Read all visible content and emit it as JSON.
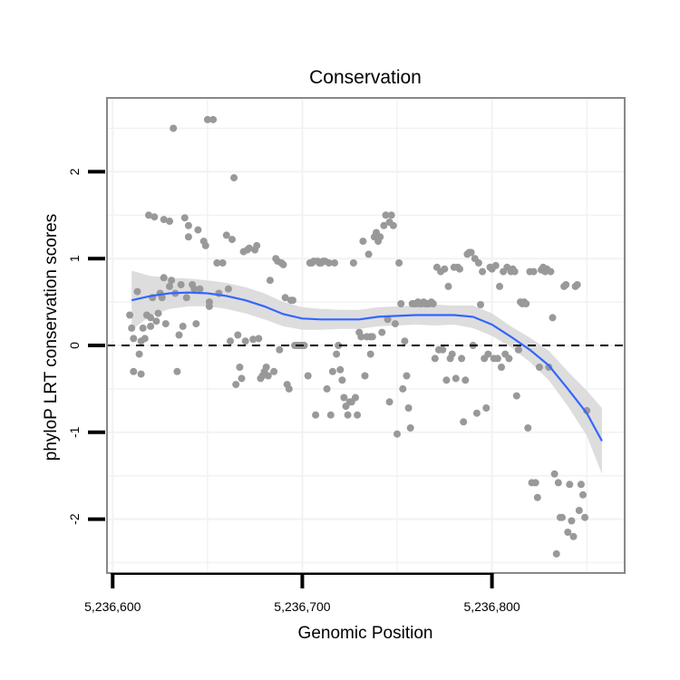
{
  "chart_data": {
    "type": "scatter",
    "title": "Conservation",
    "xlabel": "Genomic Position",
    "ylabel": "phyloP LRT conservation scores",
    "xlim": [
      5236597,
      5236870
    ],
    "ylim": [
      -2.62,
      2.85
    ],
    "x_ticks": [
      5236600,
      5236700,
      5236800
    ],
    "x_tick_labels": [
      "5,236,600",
      "5,236,700",
      "5,236,800"
    ],
    "y_ticks": [
      -2,
      -1,
      0,
      1,
      2
    ],
    "y_tick_labels": [
      "-2",
      "-1",
      "0",
      "1",
      "2"
    ],
    "reference_line": {
      "y": 0,
      "style": "dashed"
    },
    "grid": true,
    "colors": {
      "points": "#999999",
      "smooth": "#3366ff",
      "band": "#d9d9d9",
      "panel_border": "#888888",
      "grid": "#f2f2f2"
    },
    "smooth_curve": {
      "x": [
        5236610,
        5236620,
        5236630,
        5236640,
        5236650,
        5236660,
        5236670,
        5236680,
        5236690,
        5236700,
        5236710,
        5236720,
        5236730,
        5236740,
        5236750,
        5236760,
        5236770,
        5236780,
        5236790,
        5236800,
        5236810,
        5236820,
        5236830,
        5236840,
        5236850,
        5236858
      ],
      "y": [
        0.52,
        0.57,
        0.6,
        0.61,
        0.6,
        0.57,
        0.52,
        0.45,
        0.36,
        0.31,
        0.3,
        0.3,
        0.3,
        0.33,
        0.34,
        0.35,
        0.35,
        0.35,
        0.33,
        0.24,
        0.1,
        -0.05,
        -0.23,
        -0.5,
        -0.78,
        -1.1
      ],
      "upper": [
        0.86,
        0.8,
        0.78,
        0.77,
        0.75,
        0.72,
        0.67,
        0.6,
        0.5,
        0.44,
        0.42,
        0.41,
        0.41,
        0.44,
        0.45,
        0.46,
        0.47,
        0.46,
        0.46,
        0.37,
        0.22,
        0.09,
        -0.06,
        -0.3,
        -0.52,
        -0.72
      ],
      "lower": [
        0.18,
        0.34,
        0.42,
        0.45,
        0.45,
        0.42,
        0.37,
        0.3,
        0.22,
        0.18,
        0.18,
        0.19,
        0.19,
        0.22,
        0.23,
        0.24,
        0.23,
        0.24,
        0.2,
        0.11,
        -0.02,
        -0.19,
        -0.4,
        -0.7,
        -1.04,
        -1.48
      ]
    },
    "points": [
      {
        "x": 5236609,
        "y": 0.35
      },
      {
        "x": 5236610,
        "y": 0.2
      },
      {
        "x": 5236611,
        "y": 0.08
      },
      {
        "x": 5236611,
        "y": -0.3
      },
      {
        "x": 5236613,
        "y": 0.62
      },
      {
        "x": 5236614,
        "y": -0.1
      },
      {
        "x": 5236615,
        "y": 0.05
      },
      {
        "x": 5236615,
        "y": -0.33
      },
      {
        "x": 5236616,
        "y": 0.2
      },
      {
        "x": 5236617,
        "y": 0.08
      },
      {
        "x": 5236618,
        "y": 0.35
      },
      {
        "x": 5236619,
        "y": 1.5
      },
      {
        "x": 5236620,
        "y": 0.32
      },
      {
        "x": 5236620,
        "y": 0.22
      },
      {
        "x": 5236621,
        "y": 0.55
      },
      {
        "x": 5236622,
        "y": 1.48
      },
      {
        "x": 5236623,
        "y": 0.28
      },
      {
        "x": 5236624,
        "y": 0.37
      },
      {
        "x": 5236625,
        "y": 0.6
      },
      {
        "x": 5236626,
        "y": 0.55
      },
      {
        "x": 5236627,
        "y": 1.45
      },
      {
        "x": 5236627,
        "y": 0.78
      },
      {
        "x": 5236628,
        "y": 0.25
      },
      {
        "x": 5236630,
        "y": 1.43
      },
      {
        "x": 5236630,
        "y": 0.68
      },
      {
        "x": 5236631,
        "y": 0.75
      },
      {
        "x": 5236632,
        "y": 2.5
      },
      {
        "x": 5236633,
        "y": 0.6
      },
      {
        "x": 5236634,
        "y": -0.3
      },
      {
        "x": 5236635,
        "y": 0.12
      },
      {
        "x": 5236636,
        "y": 0.7
      },
      {
        "x": 5236637,
        "y": 0.22
      },
      {
        "x": 5236638,
        "y": 1.47
      },
      {
        "x": 5236639,
        "y": 0.55
      },
      {
        "x": 5236640,
        "y": 1.38
      },
      {
        "x": 5236640,
        "y": 1.25
      },
      {
        "x": 5236642,
        "y": 0.7
      },
      {
        "x": 5236643,
        "y": 0.65
      },
      {
        "x": 5236644,
        "y": 0.25
      },
      {
        "x": 5236645,
        "y": 1.33
      },
      {
        "x": 5236646,
        "y": 0.65
      },
      {
        "x": 5236648,
        "y": 1.2
      },
      {
        "x": 5236649,
        "y": 1.15
      },
      {
        "x": 5236650,
        "y": 2.6
      },
      {
        "x": 5236651,
        "y": 0.5
      },
      {
        "x": 5236651,
        "y": 0.45
      },
      {
        "x": 5236653,
        "y": 2.6
      },
      {
        "x": 5236655,
        "y": 0.95
      },
      {
        "x": 5236656,
        "y": 0.6
      },
      {
        "x": 5236658,
        "y": 0.95
      },
      {
        "x": 5236660,
        "y": 1.27
      },
      {
        "x": 5236661,
        "y": 0.65
      },
      {
        "x": 5236662,
        "y": 0.05
      },
      {
        "x": 5236663,
        "y": 1.22
      },
      {
        "x": 5236664,
        "y": 1.93
      },
      {
        "x": 5236665,
        "y": -0.45
      },
      {
        "x": 5236666,
        "y": 0.12
      },
      {
        "x": 5236667,
        "y": -0.25
      },
      {
        "x": 5236668,
        "y": -0.38
      },
      {
        "x": 5236669,
        "y": 1.08
      },
      {
        "x": 5236670,
        "y": 0.05
      },
      {
        "x": 5236671,
        "y": 1.1
      },
      {
        "x": 5236672,
        "y": 1.12
      },
      {
        "x": 5236674,
        "y": 0.07
      },
      {
        "x": 5236675,
        "y": 1.1
      },
      {
        "x": 5236676,
        "y": 1.15
      },
      {
        "x": 5236677,
        "y": 0.08
      },
      {
        "x": 5236678,
        "y": -0.38
      },
      {
        "x": 5236679,
        "y": -0.35
      },
      {
        "x": 5236680,
        "y": -0.3
      },
      {
        "x": 5236681,
        "y": -0.25
      },
      {
        "x": 5236682,
        "y": -0.35
      },
      {
        "x": 5236683,
        "y": 0.75
      },
      {
        "x": 5236685,
        "y": -0.3
      },
      {
        "x": 5236686,
        "y": 1.0
      },
      {
        "x": 5236687,
        "y": 0.97
      },
      {
        "x": 5236688,
        "y": -0.05
      },
      {
        "x": 5236689,
        "y": 0.95
      },
      {
        "x": 5236690,
        "y": 0.93
      },
      {
        "x": 5236691,
        "y": 0.55
      },
      {
        "x": 5236692,
        "y": -0.45
      },
      {
        "x": 5236693,
        "y": -0.5
      },
      {
        "x": 5236694,
        "y": 0.52
      },
      {
        "x": 5236695,
        "y": 0.52
      },
      {
        "x": 5236696,
        "y": 0.0
      },
      {
        "x": 5236697,
        "y": 0.0
      },
      {
        "x": 5236698,
        "y": 0.0
      },
      {
        "x": 5236699,
        "y": 0.0
      },
      {
        "x": 5236700,
        "y": 0.0
      },
      {
        "x": 5236701,
        "y": 0.0
      },
      {
        "x": 5236703,
        "y": -0.35
      },
      {
        "x": 5236704,
        "y": 0.95
      },
      {
        "x": 5236705,
        "y": 0.95
      },
      {
        "x": 5236706,
        "y": 0.97
      },
      {
        "x": 5236707,
        "y": -0.8
      },
      {
        "x": 5236708,
        "y": 0.97
      },
      {
        "x": 5236709,
        "y": 0.95
      },
      {
        "x": 5236710,
        "y": 0.95
      },
      {
        "x": 5236711,
        "y": 0.97
      },
      {
        "x": 5236712,
        "y": 0.97
      },
      {
        "x": 5236713,
        "y": -0.5
      },
      {
        "x": 5236714,
        "y": 0.95
      },
      {
        "x": 5236715,
        "y": -0.8
      },
      {
        "x": 5236716,
        "y": -0.3
      },
      {
        "x": 5236717,
        "y": 0.95
      },
      {
        "x": 5236718,
        "y": -0.1
      },
      {
        "x": 5236719,
        "y": 0.0
      },
      {
        "x": 5236720,
        "y": -0.28
      },
      {
        "x": 5236721,
        "y": -0.4
      },
      {
        "x": 5236722,
        "y": -0.6
      },
      {
        "x": 5236723,
        "y": -0.7
      },
      {
        "x": 5236724,
        "y": -0.8
      },
      {
        "x": 5236725,
        "y": -0.65
      },
      {
        "x": 5236726,
        "y": -0.65
      },
      {
        "x": 5236727,
        "y": 0.95
      },
      {
        "x": 5236728,
        "y": -0.6
      },
      {
        "x": 5236729,
        "y": -0.8
      },
      {
        "x": 5236730,
        "y": 0.15
      },
      {
        "x": 5236731,
        "y": 0.1
      },
      {
        "x": 5236732,
        "y": 1.2
      },
      {
        "x": 5236733,
        "y": -0.35
      },
      {
        "x": 5236734,
        "y": 0.1
      },
      {
        "x": 5236735,
        "y": 1.05
      },
      {
        "x": 5236736,
        "y": 0.1
      },
      {
        "x": 5236736,
        "y": -0.1
      },
      {
        "x": 5236737,
        "y": 0.1
      },
      {
        "x": 5236738,
        "y": 1.25
      },
      {
        "x": 5236739,
        "y": 1.3
      },
      {
        "x": 5236740,
        "y": 1.2
      },
      {
        "x": 5236741,
        "y": 1.25
      },
      {
        "x": 5236742,
        "y": 0.15
      },
      {
        "x": 5236743,
        "y": 1.38
      },
      {
        "x": 5236744,
        "y": 1.5
      },
      {
        "x": 5236745,
        "y": 0.3
      },
      {
        "x": 5236746,
        "y": 1.42
      },
      {
        "x": 5236746,
        "y": -0.65
      },
      {
        "x": 5236747,
        "y": 1.5
      },
      {
        "x": 5236748,
        "y": 1.38
      },
      {
        "x": 5236749,
        "y": 0.25
      },
      {
        "x": 5236750,
        "y": -1.02
      },
      {
        "x": 5236751,
        "y": 0.95
      },
      {
        "x": 5236752,
        "y": 0.48
      },
      {
        "x": 5236753,
        "y": -0.5
      },
      {
        "x": 5236754,
        "y": 0.05
      },
      {
        "x": 5236755,
        "y": -0.35
      },
      {
        "x": 5236756,
        "y": -0.72
      },
      {
        "x": 5236757,
        "y": -0.95
      },
      {
        "x": 5236758,
        "y": 0.48
      },
      {
        "x": 5236759,
        "y": 0.48
      },
      {
        "x": 5236760,
        "y": 0.48
      },
      {
        "x": 5236761,
        "y": 0.5
      },
      {
        "x": 5236762,
        "y": 0.48
      },
      {
        "x": 5236763,
        "y": 0.48
      },
      {
        "x": 5236764,
        "y": 0.5
      },
      {
        "x": 5236765,
        "y": 0.48
      },
      {
        "x": 5236766,
        "y": 0.48
      },
      {
        "x": 5236767,
        "y": 0.48
      },
      {
        "x": 5236768,
        "y": 0.5
      },
      {
        "x": 5236769,
        "y": 0.48
      },
      {
        "x": 5236770,
        "y": -0.15
      },
      {
        "x": 5236771,
        "y": 0.9
      },
      {
        "x": 5236772,
        "y": -0.05
      },
      {
        "x": 5236773,
        "y": 0.85
      },
      {
        "x": 5236774,
        "y": -0.05
      },
      {
        "x": 5236775,
        "y": 0.88
      },
      {
        "x": 5236776,
        "y": -0.4
      },
      {
        "x": 5236777,
        "y": 0.68
      },
      {
        "x": 5236778,
        "y": -0.15
      },
      {
        "x": 5236779,
        "y": -0.1
      },
      {
        "x": 5236780,
        "y": 0.9
      },
      {
        "x": 5236781,
        "y": -0.38
      },
      {
        "x": 5236782,
        "y": 0.9
      },
      {
        "x": 5236783,
        "y": 0.88
      },
      {
        "x": 5236784,
        "y": -0.15
      },
      {
        "x": 5236785,
        "y": -0.88
      },
      {
        "x": 5236786,
        "y": -0.4
      },
      {
        "x": 5236787,
        "y": 1.05
      },
      {
        "x": 5236788,
        "y": 1.07
      },
      {
        "x": 5236789,
        "y": 1.07
      },
      {
        "x": 5236790,
        "y": 0.0
      },
      {
        "x": 5236791,
        "y": 1.0
      },
      {
        "x": 5236792,
        "y": -0.78
      },
      {
        "x": 5236793,
        "y": 0.95
      },
      {
        "x": 5236794,
        "y": 0.47
      },
      {
        "x": 5236795,
        "y": 0.85
      },
      {
        "x": 5236796,
        "y": -0.15
      },
      {
        "x": 5236797,
        "y": -0.72
      },
      {
        "x": 5236798,
        "y": -0.1
      },
      {
        "x": 5236799,
        "y": 0.9
      },
      {
        "x": 5236800,
        "y": 0.88
      },
      {
        "x": 5236801,
        "y": -0.15
      },
      {
        "x": 5236802,
        "y": 0.92
      },
      {
        "x": 5236803,
        "y": -0.15
      },
      {
        "x": 5236804,
        "y": 0.68
      },
      {
        "x": 5236805,
        "y": -0.25
      },
      {
        "x": 5236806,
        "y": 0.85
      },
      {
        "x": 5236807,
        "y": -0.1
      },
      {
        "x": 5236808,
        "y": 0.9
      },
      {
        "x": 5236809,
        "y": -0.15
      },
      {
        "x": 5236810,
        "y": 0.85
      },
      {
        "x": 5236811,
        "y": 0.88
      },
      {
        "x": 5236812,
        "y": 0.85
      },
      {
        "x": 5236813,
        "y": -0.58
      },
      {
        "x": 5236814,
        "y": -0.05
      },
      {
        "x": 5236815,
        "y": 0.5
      },
      {
        "x": 5236816,
        "y": 0.48
      },
      {
        "x": 5236817,
        "y": 0.5
      },
      {
        "x": 5236818,
        "y": 0.48
      },
      {
        "x": 5236819,
        "y": -0.95
      },
      {
        "x": 5236820,
        "y": 0.85
      },
      {
        "x": 5236821,
        "y": -1.58
      },
      {
        "x": 5236822,
        "y": 0.85
      },
      {
        "x": 5236823,
        "y": -1.58
      },
      {
        "x": 5236824,
        "y": -1.75
      },
      {
        "x": 5236825,
        "y": -0.25
      },
      {
        "x": 5236826,
        "y": 0.87
      },
      {
        "x": 5236827,
        "y": 0.9
      },
      {
        "x": 5236828,
        "y": 0.85
      },
      {
        "x": 5236829,
        "y": 0.88
      },
      {
        "x": 5236830,
        "y": -0.25
      },
      {
        "x": 5236831,
        "y": 0.85
      },
      {
        "x": 5236832,
        "y": 0.32
      },
      {
        "x": 5236833,
        "y": -1.48
      },
      {
        "x": 5236834,
        "y": -2.4
      },
      {
        "x": 5236835,
        "y": -1.58
      },
      {
        "x": 5236836,
        "y": -1.98
      },
      {
        "x": 5236837,
        "y": -1.98
      },
      {
        "x": 5236838,
        "y": 0.68
      },
      {
        "x": 5236839,
        "y": 0.7
      },
      {
        "x": 5236840,
        "y": -2.15
      },
      {
        "x": 5236841,
        "y": -1.6
      },
      {
        "x": 5236842,
        "y": -2.02
      },
      {
        "x": 5236843,
        "y": -2.2
      },
      {
        "x": 5236844,
        "y": 0.68
      },
      {
        "x": 5236845,
        "y": 0.7
      },
      {
        "x": 5236846,
        "y": -1.9
      },
      {
        "x": 5236847,
        "y": -1.6
      },
      {
        "x": 5236848,
        "y": -1.72
      },
      {
        "x": 5236849,
        "y": -1.98
      },
      {
        "x": 5236850,
        "y": -0.75
      }
    ]
  }
}
